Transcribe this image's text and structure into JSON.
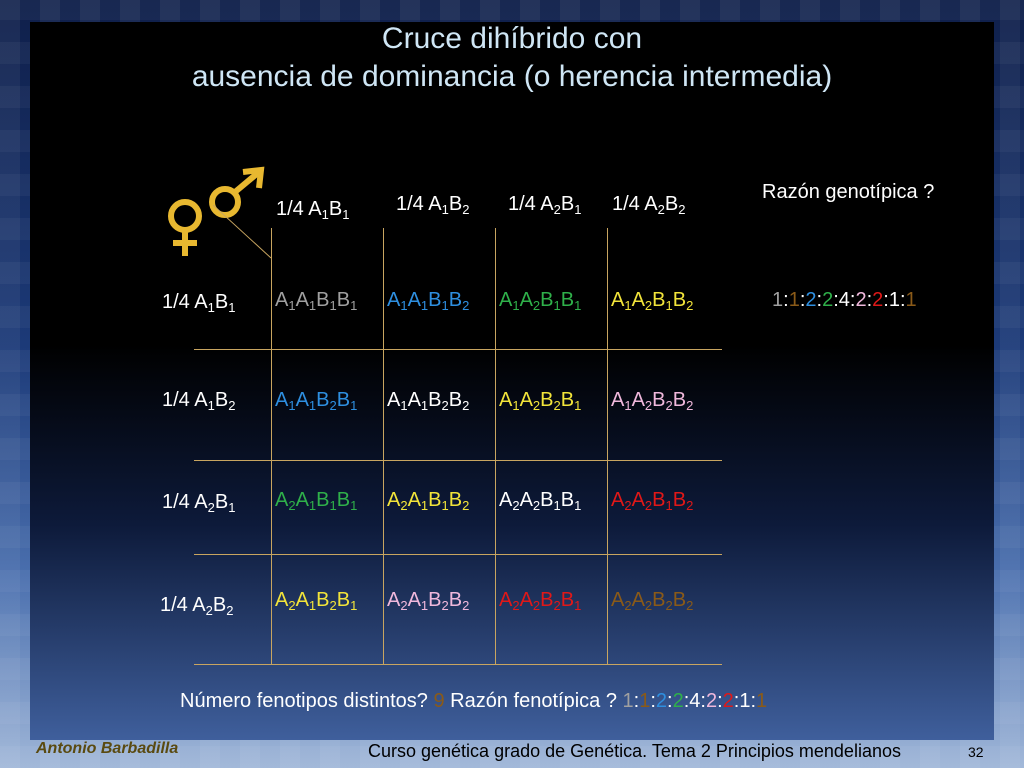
{
  "title": {
    "line1": "Cruce dihíbrido con",
    "line2": "ausencia de dominancia (o herencia intermedia)"
  },
  "icons": {
    "male": "male-symbol-icon",
    "female": "female-symbol-icon"
  },
  "colors": {
    "gray": "#a0a0a0",
    "blue": "#2e8fe0",
    "green": "#2fb04a",
    "yellow": "#f2e43a",
    "pink": "#f0b8dc",
    "white": "#ffffff",
    "red": "#e01818",
    "brown": "#8a5a18",
    "gold": "#c8a560"
  },
  "col_headers": [
    "1/4 A1B1",
    "1/4 A1B2",
    "1/4 A2B1",
    "1/4 A2B2"
  ],
  "row_headers": [
    "1/4 A1B1",
    "1/4 A1B2",
    "1/4 A2B1",
    "1/4 A2B2"
  ],
  "grid": [
    [
      "A1A1B1B1",
      "A1A1B1B2",
      "A1A2B1B1",
      "A1A2B1B2"
    ],
    [
      "A1A1B2B1",
      "A1A1B2B2",
      "A1A2B2B1",
      "A1A2B2B2"
    ],
    [
      "A2A1B1B1",
      "A2A1B1B2",
      "A2A2B1B1",
      "A2A2B1B2"
    ],
    [
      "A2A1B2B1",
      "A2A1B2B2",
      "A2A2B2B1",
      "A2A2B2B2"
    ]
  ],
  "grid_colors": [
    [
      "gray",
      "blue",
      "green",
      "yellow"
    ],
    [
      "blue",
      "white",
      "yellow",
      "pink"
    ],
    [
      "green",
      "yellow",
      "white",
      "red"
    ],
    [
      "yellow",
      "pink",
      "red",
      "brown"
    ]
  ],
  "genotypic_question": "Razón genotípica ?",
  "genotypic_ratio": [
    "1",
    ":",
    "1",
    ":",
    "2",
    ":",
    "2",
    ":",
    "4",
    ":",
    "2",
    ":",
    "2",
    ":",
    "1",
    ":",
    "1"
  ],
  "genotypic_ratio_colors": [
    "gray",
    "white",
    "brown",
    "white",
    "blue",
    "white",
    "green",
    "white",
    "white",
    "white",
    "pink",
    "white",
    "red",
    "white",
    "white",
    "white",
    "brown"
  ],
  "phenotype_question": "Número fenotipos distintos?",
  "phenotype_count": "9",
  "phenotypic_question": "Razón fenotípica ?",
  "phenotypic_ratio": [
    "1",
    ":",
    "1",
    ":",
    "2",
    ":",
    "2",
    ":",
    "4",
    ":",
    "2",
    ":",
    "2",
    ":",
    "1",
    ":",
    "1"
  ],
  "phenotypic_ratio_colors": [
    "gray",
    "white",
    "brown",
    "white",
    "blue",
    "white",
    "green",
    "white",
    "white",
    "white",
    "pink",
    "white",
    "red",
    "white",
    "white",
    "white",
    "brown"
  ],
  "footer": {
    "author": "Antonio Barbadilla",
    "course": "Curso genética grado de Genética. Tema 2 Principios mendelianos",
    "page": "32"
  }
}
